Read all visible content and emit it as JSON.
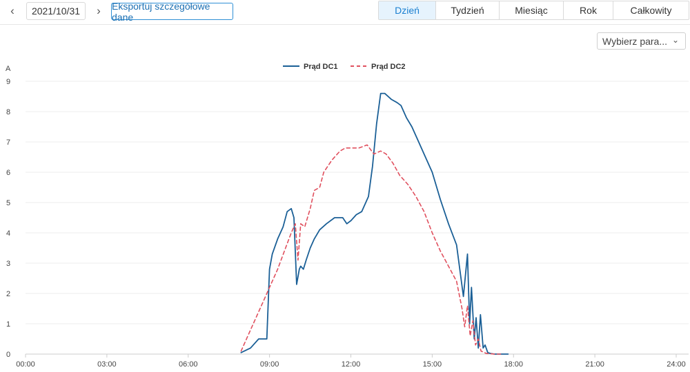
{
  "toolbar": {
    "prev_icon": "chevron-left-icon",
    "next_icon": "chevron-right-icon",
    "date": "2021/10/31",
    "export_label": "Eksportuj szczegółowe dane"
  },
  "tabs": [
    {
      "label": "Dzień",
      "active": true
    },
    {
      "label": "Tydzień",
      "active": false
    },
    {
      "label": "Miesiąc",
      "active": false
    },
    {
      "label": "Rok",
      "active": false
    },
    {
      "label": "Całkowity",
      "active": false
    }
  ],
  "param_select": {
    "placeholder": "Wybierz para...",
    "icon": "chevron-down-icon"
  },
  "colors": {
    "dc1": "#1a5f96",
    "dc2": "#e0505e",
    "accent": "#1a7fd0"
  },
  "chart_data": {
    "type": "line",
    "title": "",
    "ylabel": "A",
    "xlabel": "",
    "ylim": [
      0,
      9
    ],
    "xlim": [
      0,
      24
    ],
    "yticks": [
      0,
      1,
      2,
      3,
      4,
      5,
      6,
      7,
      8,
      9
    ],
    "xtick_labels": [
      "00:00",
      "03:00",
      "06:00",
      "09:00",
      "12:00",
      "15:00",
      "18:00",
      "21:00",
      "24:00"
    ],
    "grid": true,
    "legend_position": "top-center",
    "series": [
      {
        "name": "Prąd DC1",
        "style": "solid",
        "x": [
          7.95,
          8.3,
          8.6,
          8.9,
          9.0,
          9.1,
          9.3,
          9.5,
          9.65,
          9.8,
          9.9,
          10.0,
          10.1,
          10.15,
          10.25,
          10.35,
          10.5,
          10.65,
          10.85,
          11.1,
          11.4,
          11.7,
          11.85,
          12.0,
          12.2,
          12.4,
          12.65,
          12.8,
          12.95,
          13.1,
          13.25,
          13.5,
          13.7,
          13.85,
          14.05,
          14.25,
          14.45,
          14.7,
          15.0,
          15.3,
          15.6,
          15.9,
          16.15,
          16.3,
          16.38,
          16.45,
          16.55,
          16.62,
          16.7,
          16.78,
          16.88,
          16.95,
          17.05,
          17.15,
          17.3,
          17.5,
          17.8
        ],
        "y": [
          0.05,
          0.2,
          0.5,
          0.5,
          2.8,
          3.3,
          3.8,
          4.2,
          4.7,
          4.8,
          4.5,
          2.3,
          2.8,
          2.9,
          2.8,
          3.1,
          3.5,
          3.8,
          4.1,
          4.3,
          4.5,
          4.5,
          4.3,
          4.4,
          4.6,
          4.7,
          5.2,
          6.2,
          7.6,
          8.6,
          8.6,
          8.4,
          8.3,
          8.2,
          7.8,
          7.5,
          7.1,
          6.6,
          6.0,
          5.1,
          4.3,
          3.6,
          1.9,
          3.3,
          1.0,
          2.2,
          0.5,
          1.2,
          0.2,
          1.3,
          0.2,
          0.3,
          0.05,
          0.02,
          0.0,
          0.0,
          0.0
        ]
      },
      {
        "name": "Prąd DC2",
        "style": "dashed",
        "x": [
          7.95,
          8.2,
          8.5,
          8.8,
          9.0,
          9.3,
          9.55,
          9.8,
          9.95,
          10.05,
          10.15,
          10.3,
          10.5,
          10.65,
          10.85,
          11.0,
          11.3,
          11.6,
          11.8,
          12.0,
          12.3,
          12.6,
          12.85,
          13.1,
          13.3,
          13.55,
          13.8,
          14.1,
          14.4,
          14.7,
          15.0,
          15.3,
          15.6,
          15.9,
          16.1,
          16.2,
          16.3,
          16.4,
          16.5,
          16.6,
          16.7,
          16.8,
          17.0,
          17.3,
          17.6
        ],
        "y": [
          0.1,
          0.6,
          1.2,
          1.8,
          2.2,
          2.8,
          3.4,
          4.0,
          4.3,
          3.1,
          4.3,
          4.2,
          4.8,
          5.4,
          5.5,
          6.0,
          6.4,
          6.7,
          6.8,
          6.8,
          6.8,
          6.9,
          6.6,
          6.7,
          6.6,
          6.3,
          5.9,
          5.6,
          5.2,
          4.7,
          4.0,
          3.4,
          2.9,
          2.4,
          1.5,
          0.9,
          1.6,
          0.6,
          1.1,
          0.3,
          0.5,
          0.1,
          0.02,
          0.0,
          0.0
        ]
      }
    ]
  }
}
